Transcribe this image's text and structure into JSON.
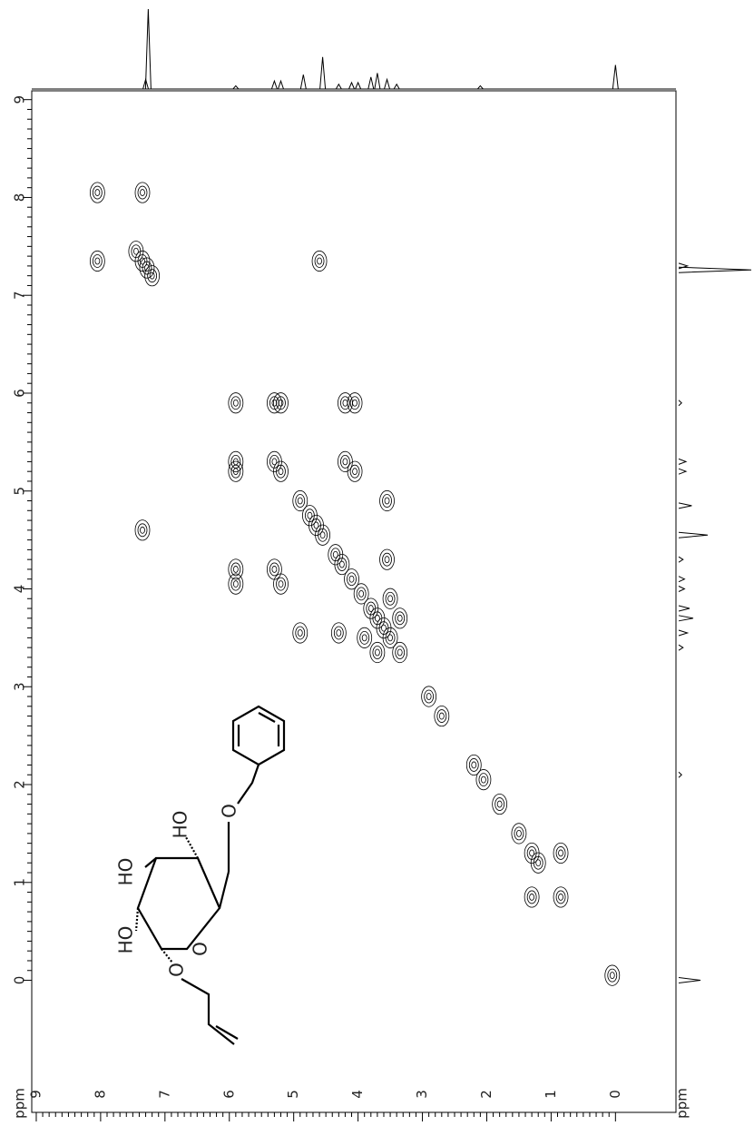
{
  "chart_data": {
    "type": "contour",
    "xlabel": "ppm",
    "ylabel": "ppm",
    "xlim": [
      9.07,
      -0.94
    ],
    "ylim": [
      9.09,
      -1.35
    ],
    "xticks": [
      9,
      8,
      7,
      6,
      5,
      4,
      3,
      2,
      1,
      0
    ],
    "yticks": [
      9,
      8,
      7,
      6,
      5,
      4,
      3,
      2,
      1,
      0
    ],
    "color": "#000000",
    "x": [
      8.05,
      7.45,
      7.35,
      7.28,
      7.2,
      5.9,
      5.3,
      5.2,
      4.9,
      4.75,
      4.65,
      4.55,
      4.35,
      4.25,
      4.1,
      3.95,
      3.8,
      3.7,
      3.6,
      3.5,
      3.35,
      2.9,
      2.7,
      2.2,
      2.05,
      1.8,
      1.5,
      1.3,
      1.2,
      0.85,
      0.05,
      8.05,
      7.35,
      7.35,
      4.6,
      5.9,
      5.3,
      5.9,
      5.2,
      5.9,
      4.2,
      5.9,
      4.05,
      5.3,
      4.2,
      5.2,
      4.05,
      4.9,
      3.55,
      4.3,
      3.55,
      3.9,
      3.5,
      3.7,
      3.35,
      1.3,
      0.85
    ],
    "values": [
      8.05,
      7.45,
      7.35,
      7.28,
      7.2,
      5.9,
      5.3,
      5.2,
      4.9,
      4.75,
      4.65,
      4.55,
      4.35,
      4.25,
      4.1,
      3.95,
      3.8,
      3.7,
      3.6,
      3.5,
      3.35,
      2.9,
      2.7,
      2.2,
      2.05,
      1.8,
      1.5,
      1.3,
      1.2,
      0.85,
      0.05,
      7.35,
      8.05,
      4.6,
      7.35,
      5.3,
      5.9,
      5.2,
      5.9,
      4.2,
      5.9,
      4.05,
      5.9,
      4.2,
      5.3,
      4.05,
      5.2,
      3.55,
      4.9,
      3.55,
      4.3,
      3.5,
      3.9,
      3.35,
      3.7,
      0.85,
      1.3
    ],
    "projection": {
      "x": [
        7.26,
        7.3,
        5.9,
        5.3,
        5.2,
        4.85,
        4.55,
        4.3,
        4.1,
        4.0,
        3.8,
        3.7,
        3.55,
        3.4,
        2.1,
        0.0
      ],
      "values": [
        100,
        12,
        4,
        10,
        10,
        18,
        40,
        6,
        8,
        8,
        15,
        20,
        12,
        6,
        4,
        30
      ]
    },
    "structure_labels": [
      "HO",
      "HO",
      "HO",
      "O",
      "O",
      "O"
    ]
  }
}
